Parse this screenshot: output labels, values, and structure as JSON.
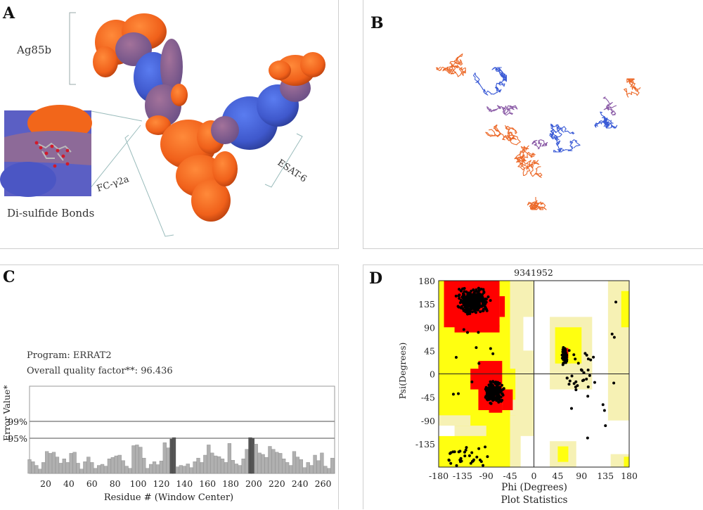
{
  "figure": {
    "panels": [
      {
        "id": "A",
        "label": "A"
      },
      {
        "id": "B",
        "label": "B"
      },
      {
        "id": "C",
        "label": "C"
      },
      {
        "id": "D",
        "label": "D"
      }
    ]
  },
  "panelA": {
    "label": "A",
    "annotations": {
      "ag85b": "Ag85b",
      "fc": "FC-γ2a",
      "esat": "ESAT-6",
      "disulfide": "Di-sulfide Bonds"
    },
    "colors": {
      "orange": "#ff6a1a",
      "blue": "#4a63d6",
      "mauve": "#8a5f96"
    }
  },
  "panelB": {
    "label": "B",
    "colors": {
      "orange": "#ec6a2a",
      "blue": "#3b5bd6",
      "purple": "#8a5aa6"
    }
  },
  "panelC": {
    "label": "C",
    "program": "Program: ERRAT2",
    "quality": "Overall quality factor**: 96.436",
    "ylabel": "Error Value*",
    "xlabel": "Residue # (Window Center)",
    "thresholds": [
      {
        "label": "99%",
        "value": 99
      },
      {
        "label": "95%",
        "value": 95
      }
    ],
    "xticks": [
      "20",
      "40",
      "60",
      "80",
      "100",
      "120",
      "140",
      "160",
      "180",
      "200",
      "220",
      "240",
      "260"
    ]
  },
  "panelD": {
    "label": "D",
    "title": "9341952",
    "xlabel": "Phi (Degrees)",
    "subtitle": "Plot Statistics",
    "ylabel": "Psi(Degrees)",
    "xticks": [
      "-180",
      "-135",
      "-90",
      "-45",
      "0",
      "45",
      "90",
      "135",
      "180"
    ],
    "yticks": [
      "180",
      "135",
      "90",
      "45",
      "0",
      "-45",
      "-90",
      "-135"
    ]
  },
  "chart_data": [
    {
      "type": "bar",
      "title": "Program: ERRAT2 — Overall quality factor**: 96.436",
      "xlabel": "Residue # (Window Center)",
      "ylabel": "Error Value*",
      "xlim": [
        6,
        270
      ],
      "ylim": [
        0,
        120
      ],
      "reference_lines": [
        {
          "label": "99%",
          "y": 99
        },
        {
          "label": "95%",
          "y": 95
        }
      ],
      "highlight_bars": [
        130,
        131,
        198,
        199
      ],
      "x": [
        6,
        9,
        12,
        15,
        18,
        21,
        24,
        27,
        30,
        33,
        36,
        39,
        42,
        45,
        48,
        51,
        54,
        57,
        60,
        63,
        66,
        69,
        72,
        75,
        78,
        81,
        84,
        87,
        90,
        93,
        96,
        99,
        102,
        105,
        108,
        111,
        114,
        117,
        120,
        123,
        126,
        129,
        131,
        134,
        137,
        140,
        143,
        146,
        149,
        152,
        155,
        158,
        161,
        164,
        167,
        170,
        173,
        176,
        179,
        182,
        185,
        188,
        191,
        194,
        197,
        199,
        202,
        205,
        208,
        211,
        214,
        217,
        220,
        223,
        226,
        229,
        232,
        235,
        238,
        241,
        244,
        247,
        250,
        253,
        256,
        259,
        262,
        265,
        268
      ],
      "values": [
        38,
        32,
        22,
        12,
        30,
        60,
        55,
        58,
        45,
        28,
        40,
        30,
        55,
        58,
        28,
        12,
        32,
        45,
        30,
        14,
        22,
        25,
        20,
        40,
        44,
        48,
        50,
        35,
        20,
        14,
        76,
        78,
        72,
        42,
        14,
        25,
        32,
        24,
        34,
        84,
        70,
        94,
        98,
        18,
        22,
        20,
        26,
        16,
        32,
        42,
        30,
        50,
        78,
        56,
        48,
        46,
        40,
        30,
        82,
        36,
        26,
        22,
        40,
        66,
        98,
        96,
        80,
        56,
        52,
        44,
        74,
        66,
        58,
        55,
        40,
        30,
        22,
        60,
        45,
        38,
        16,
        30,
        22,
        50,
        35,
        56,
        20,
        14,
        42
      ]
    },
    {
      "type": "scatter",
      "title": "9341952",
      "xlabel": "Phi (Degrees)",
      "ylabel": "Psi(Degrees)",
      "subtitle": "Plot Statistics",
      "xlim": [
        -180,
        180
      ],
      "ylim": [
        -180,
        180
      ],
      "xticks": [
        -180,
        -135,
        -90,
        -45,
        0,
        45,
        90,
        135,
        180
      ],
      "yticks": [
        -135,
        -90,
        -45,
        0,
        45,
        90,
        135,
        180
      ],
      "regions": [
        {
          "name": "most-favoured",
          "color": "#ff0000"
        },
        {
          "name": "additional-allowed",
          "color": "#ffff00"
        },
        {
          "name": "generously-allowed",
          "color": "#f5f0b0"
        },
        {
          "name": "disallowed",
          "color": "#ffffff"
        }
      ],
      "clusters": [
        {
          "name": "beta-sheet",
          "phi_center": -115,
          "psi_center": 140,
          "spread": [
            28,
            22
          ],
          "count": 420
        },
        {
          "name": "alpha-helix",
          "phi_center": -75,
          "psi_center": -35,
          "spread": [
            18,
            20
          ],
          "count": 220
        },
        {
          "name": "left-handed-helix",
          "phi_center": 58,
          "psi_center": 35,
          "spread": [
            5,
            20
          ],
          "count": 60
        },
        {
          "name": "scattered",
          "count": 90
        }
      ]
    }
  ]
}
